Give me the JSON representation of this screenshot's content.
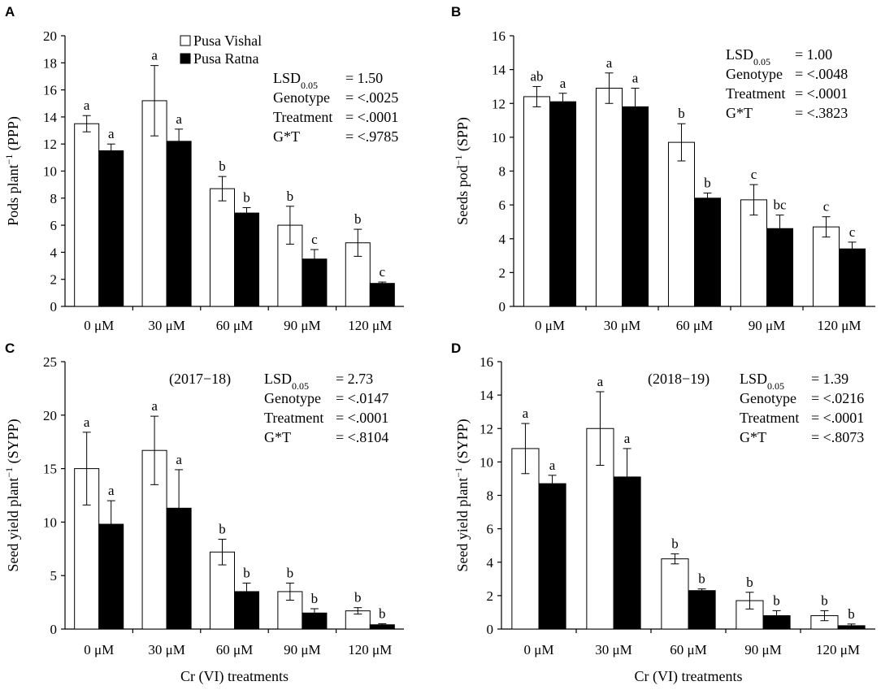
{
  "colors": {
    "series_1": "#ffffff",
    "series_2": "#000000"
  },
  "legend": [
    {
      "name": "Pusa Vishal",
      "color": "#ffffff"
    },
    {
      "name": "Pusa Ratna",
      "color": "#000000"
    }
  ],
  "chart_data": [
    {
      "panel": "A",
      "type": "bar",
      "title": "",
      "categories": [
        "0 μM",
        "30 μM",
        "60 μM",
        "90 μM",
        "120 μM"
      ],
      "ylabel": "Pods plant",
      "ylabel_sup": "−1",
      "ylabel_suffix": " (PPP)",
      "xlabel": "",
      "ylim": [
        0,
        20
      ],
      "yticks": [
        0,
        2,
        4,
        6,
        8,
        10,
        12,
        14,
        16,
        18,
        20
      ],
      "series": [
        {
          "name": "Pusa Vishal",
          "values": [
            13.5,
            15.2,
            8.7,
            6.0,
            4.7
          ],
          "errors": [
            0.6,
            2.6,
            0.9,
            1.4,
            1.0
          ],
          "letters": [
            "a",
            "a",
            "b",
            "b",
            "b"
          ]
        },
        {
          "name": "Pusa Ratna",
          "values": [
            11.5,
            12.2,
            6.9,
            3.5,
            1.7
          ],
          "errors": [
            0.5,
            0.9,
            0.4,
            0.7,
            0.1
          ],
          "letters": [
            "a",
            "a",
            "b",
            "c",
            "c"
          ]
        }
      ],
      "stats": [
        {
          "label": "LSD",
          "sub": "0.05",
          "value": "= 1.50"
        },
        {
          "label": "Genotype",
          "value": "= <.0025"
        },
        {
          "label": "Treatment",
          "value": "= <.0001"
        },
        {
          "label": "G*T",
          "value": "= <.9785"
        }
      ]
    },
    {
      "panel": "B",
      "type": "bar",
      "title": "",
      "categories": [
        "0 μM",
        "30 μM",
        "60 μM",
        "90 μM",
        "120 μM"
      ],
      "ylabel": "Seeds pod",
      "ylabel_sup": "−1",
      "ylabel_suffix": " (SPP)",
      "xlabel": "",
      "ylim": [
        0,
        16
      ],
      "yticks": [
        0,
        2,
        4,
        6,
        8,
        10,
        12,
        14,
        16
      ],
      "series": [
        {
          "name": "Pusa Vishal",
          "values": [
            12.4,
            12.9,
            9.7,
            6.3,
            4.7
          ],
          "errors": [
            0.6,
            0.9,
            1.1,
            0.9,
            0.6
          ],
          "letters": [
            "ab",
            "a",
            "b",
            "c",
            "c"
          ]
        },
        {
          "name": "Pusa Ratna",
          "values": [
            12.1,
            11.8,
            6.4,
            4.6,
            3.4
          ],
          "errors": [
            0.5,
            1.1,
            0.3,
            0.8,
            0.4
          ],
          "letters": [
            "a",
            "a",
            "b",
            "bc",
            "c"
          ]
        }
      ],
      "stats": [
        {
          "label": "LSD",
          "sub": "0.05",
          "value": "= 1.00"
        },
        {
          "label": "Genotype",
          "value": "= <.0048"
        },
        {
          "label": "Treatment",
          "value": "= <.0001"
        },
        {
          "label": "G*T",
          "value": "= <.3823"
        }
      ]
    },
    {
      "panel": "C",
      "type": "bar",
      "title": "(2017−18)",
      "categories": [
        "0 μM",
        "30 μM",
        "60 μM",
        "90 μM",
        "120 μM"
      ],
      "ylabel": "Seed yield plant",
      "ylabel_sup": "−1",
      "ylabel_suffix": " (SYPP)",
      "xlabel": "Cr (VI) treatments",
      "ylim": [
        0,
        25
      ],
      "yticks": [
        0,
        5,
        10,
        15,
        20,
        25
      ],
      "series": [
        {
          "name": "Pusa Vishal",
          "values": [
            15.0,
            16.7,
            7.2,
            3.5,
            1.7
          ],
          "errors": [
            3.4,
            3.2,
            1.2,
            0.8,
            0.3
          ],
          "letters": [
            "a",
            "a",
            "b",
            "b",
            "b"
          ]
        },
        {
          "name": "Pusa Ratna",
          "values": [
            9.8,
            11.3,
            3.5,
            1.5,
            0.4
          ],
          "errors": [
            2.2,
            3.6,
            0.8,
            0.4,
            0.1
          ],
          "letters": [
            "a",
            "a",
            "b",
            "b",
            "b"
          ]
        }
      ],
      "stats": [
        {
          "label": "LSD",
          "sub": "0.05",
          "value": "= 2.73"
        },
        {
          "label": "Genotype",
          "value": "= <.0147"
        },
        {
          "label": "Treatment",
          "value": "= <.0001"
        },
        {
          "label": "G*T",
          "value": "= <.8104"
        }
      ]
    },
    {
      "panel": "D",
      "type": "bar",
      "title": "(2018−19)",
      "categories": [
        "0 μM",
        "30 μM",
        "60 μM",
        "90 μM",
        "120 μM"
      ],
      "ylabel": "Seed yield plant",
      "ylabel_sup": "−1",
      "ylabel_suffix": " (SYPP)",
      "xlabel": "Cr (VI) treatments",
      "ylim": [
        0,
        16
      ],
      "yticks": [
        0,
        2,
        4,
        6,
        8,
        10,
        12,
        14,
        16
      ],
      "series": [
        {
          "name": "Pusa Vishal",
          "values": [
            10.8,
            12.0,
            4.2,
            1.7,
            0.8
          ],
          "errors": [
            1.5,
            2.2,
            0.3,
            0.5,
            0.3
          ],
          "letters": [
            "a",
            "a",
            "b",
            "b",
            "b"
          ]
        },
        {
          "name": "Pusa Ratna",
          "values": [
            8.7,
            9.1,
            2.3,
            0.8,
            0.2
          ],
          "errors": [
            0.5,
            1.7,
            0.1,
            0.3,
            0.1
          ],
          "letters": [
            "a",
            "a",
            "b",
            "b",
            "b"
          ]
        }
      ],
      "stats": [
        {
          "label": "LSD",
          "sub": "0.05",
          "value": "= 1.39"
        },
        {
          "label": "Genotype",
          "value": "= <.0216"
        },
        {
          "label": "Treatment",
          "value": "= <.0001"
        },
        {
          "label": "G*T",
          "value": "= <.8073"
        }
      ]
    }
  ]
}
